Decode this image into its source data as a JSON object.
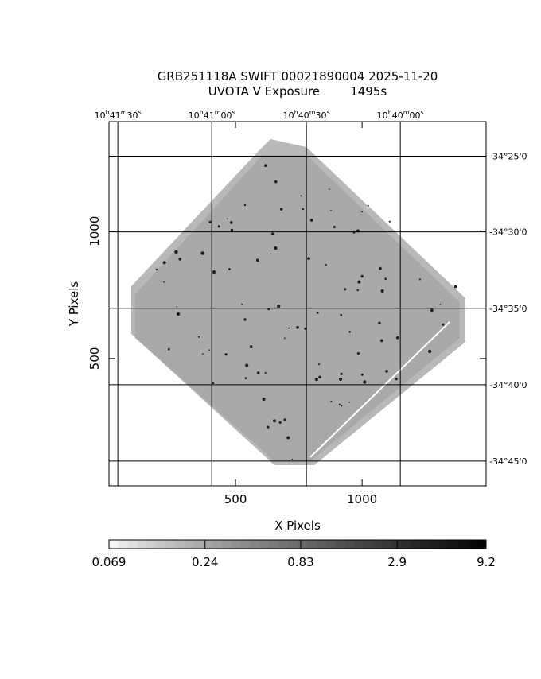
{
  "chart_data": {
    "type": "image",
    "title": "GRB251118A SWIFT 00021890004 2025-11-20",
    "subtitle": "UVOTA V Exposure        1495s",
    "xlabel": "X Pixels",
    "ylabel": "Y Pixels",
    "xlim": [
      0,
      1490
    ],
    "ylim": [
      0,
      1430
    ],
    "xticks": [
      500,
      1000
    ],
    "yticks": [
      500,
      1000
    ],
    "ra_ticks": [
      {
        "value": 35,
        "label": "10h41m30s"
      },
      {
        "value": 406,
        "label": "10h41m00s"
      },
      {
        "value": 780,
        "label": "10h40m30s"
      },
      {
        "value": 1151,
        "label": "10h40m00s"
      }
    ],
    "dec_ticks": [
      {
        "value": 1294,
        "label": "-34°25'0"
      },
      {
        "value": 997,
        "label": "-34°30'0"
      },
      {
        "value": 697,
        "label": "-34°35'0"
      },
      {
        "value": 397,
        "label": "-34°40'0"
      },
      {
        "value": 97,
        "label": "-34°45'0"
      }
    ],
    "colorbar": {
      "lim": [
        0.069,
        9.2
      ],
      "ticks": [
        0.069,
        0.24,
        0.83,
        2.9,
        9.2
      ],
      "log": true
    }
  }
}
